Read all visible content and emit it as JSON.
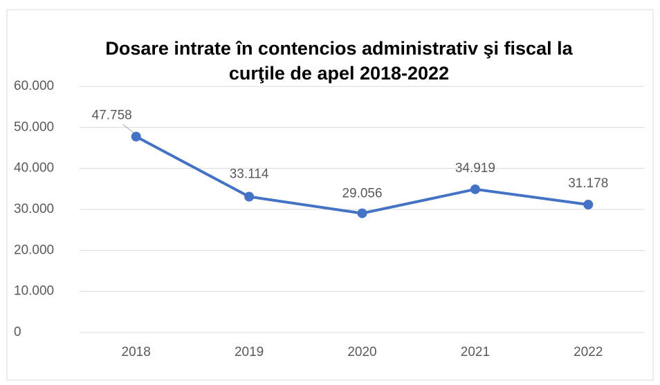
{
  "chart_data": {
    "type": "line",
    "title": "Dosare intrate în contencios administrativ şi fiscal la curţile de apel 2018-2022",
    "categories": [
      "2018",
      "2019",
      "2020",
      "2021",
      "2022"
    ],
    "series": [
      {
        "color": "#4472c4",
        "values": [
          47758,
          33114,
          29056,
          34919,
          31178
        ],
        "value_labels": [
          "47.758",
          "33.114",
          "29.056",
          "34.919",
          "31.178"
        ]
      }
    ],
    "ylim": [
      0,
      60000
    ],
    "yticks": [
      0,
      {
        "value": 10000,
        "label": "10.000"
      },
      {
        "value": 20000,
        "label": "20.000"
      },
      {
        "value": 30000,
        "label": "30.000"
      },
      {
        "value": 40000,
        "label": "40.000"
      },
      {
        "value": 50000,
        "label": "50.000"
      },
      {
        "value": 60000,
        "label": "60.000"
      }
    ],
    "grid": true
  }
}
